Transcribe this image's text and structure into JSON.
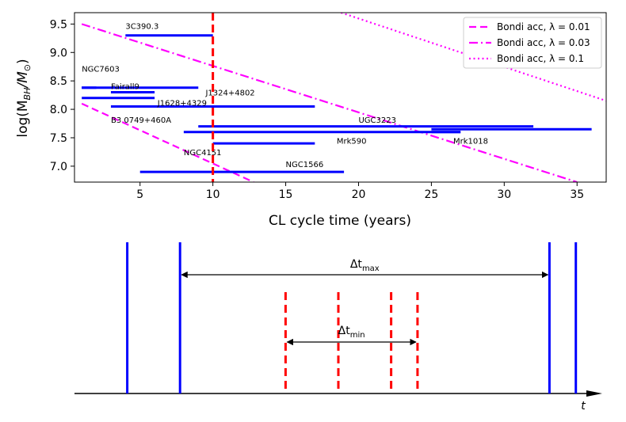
{
  "chart_data": [
    {
      "type": "range_bar",
      "xlabel": "CL cycle time (years)",
      "ylabel_main": "log(M",
      "ylabel_sub": "BH",
      "ylabel_mid": "/M",
      "ylabel_sun": "⊙",
      "ylabel_close": ")",
      "xlim": [
        0.5,
        37
      ],
      "ylim": [
        6.72,
        9.7
      ],
      "xticks": [
        5,
        10,
        15,
        20,
        25,
        30,
        35
      ],
      "xtick_labels": [
        "5",
        "10",
        "15",
        "20",
        "25",
        "30",
        "35"
      ],
      "yticks": [
        7.0,
        7.5,
        8.0,
        8.5,
        9.0,
        9.5
      ],
      "ytick_labels": [
        "7.0",
        "7.5",
        "8.0",
        "8.5",
        "9.0",
        "9.5"
      ],
      "vline": {
        "x": 10,
        "color": "#ff0000",
        "style": "dashed"
      },
      "bar_color": "#0000ff",
      "objects": [
        {
          "name": "3C390.3",
          "x0": 4,
          "x1": 10,
          "y": 9.3,
          "label_x": 4.0,
          "label_y": 9.47
        },
        {
          "name": "NGC7603",
          "x0": 1,
          "x1": 2,
          "y": 8.38,
          "label_x": 1.0,
          "label_y": 8.72
        },
        {
          "name": "",
          "x0": 1,
          "x1": 9,
          "y": 8.38
        },
        {
          "name": "Fairall9",
          "x0": 3,
          "x1": 6,
          "y": 8.3,
          "label_x": 3.0,
          "label_y": 8.41
        },
        {
          "name": "",
          "x0": 1,
          "x1": 6,
          "y": 8.2
        },
        {
          "name": "J1324+4802",
          "x0": 9,
          "x1": 9,
          "y": 8.3,
          "label_x": 9.5,
          "label_y": 8.3
        },
        {
          "name": "J1628+4329",
          "x0": 3,
          "x1": 17,
          "y": 8.05,
          "label_x": 6.2,
          "label_y": 8.12
        },
        {
          "name": "B3 0749+460A",
          "x0": 3,
          "x1": 3,
          "y": 7.9,
          "label_x": 3.0,
          "label_y": 7.82
        },
        {
          "name": "UGC3223",
          "x0": 9,
          "x1": 32,
          "y": 7.7,
          "label_x": 20.0,
          "label_y": 7.82
        },
        {
          "name": "",
          "x0": 8,
          "x1": 27,
          "y": 7.6
        },
        {
          "name": "",
          "x0": 25,
          "x1": 36,
          "y": 7.65
        },
        {
          "name": "Mrk590",
          "x0": 10,
          "x1": 17,
          "y": 7.4,
          "label_x": 18.5,
          "label_y": 7.45
        },
        {
          "name": "Mrk1018",
          "x0": 25,
          "x1": 27,
          "y": 7.6,
          "label_x": 26.5,
          "label_y": 7.45
        },
        {
          "name": "NGC4151",
          "x0": 10,
          "x1": 10,
          "y": 7.4,
          "label_x": 8.0,
          "label_y": 7.25
        },
        {
          "name": "NGC1566",
          "x0": 5,
          "x1": 19,
          "y": 6.9,
          "label_x": 15.0,
          "label_y": 7.04
        }
      ],
      "series": [
        {
          "name": "Bondi acc, λ = 0.01",
          "style": "dashed",
          "color": "#ff00ff",
          "x": [
            1,
            12.8
          ],
          "y": [
            8.1,
            6.72
          ]
        },
        {
          "name": "Bondi acc, λ = 0.03",
          "style": "dashdot",
          "color": "#ff00ff",
          "x": [
            1,
            35
          ],
          "y": [
            9.5,
            6.72
          ]
        },
        {
          "name": "Bondi acc, λ = 0.1",
          "style": "dotted",
          "color": "#ff00ff",
          "x": [
            18.8,
            37
          ],
          "y": [
            9.7,
            8.15
          ]
        }
      ],
      "legend": {
        "placement": "top-right"
      }
    },
    {
      "type": "timeline",
      "axis_label": "t",
      "blue_lines": [
        0.1,
        0.2,
        0.9,
        0.95
      ],
      "red_lines": [
        0.4,
        0.5,
        0.6,
        0.65
      ],
      "delta_max": {
        "label": "Δt",
        "sub": "max",
        "from": 0.2,
        "to": 0.9
      },
      "delta_min": {
        "label": "Δt",
        "sub": "min",
        "from": 0.4,
        "to": 0.65
      }
    }
  ]
}
